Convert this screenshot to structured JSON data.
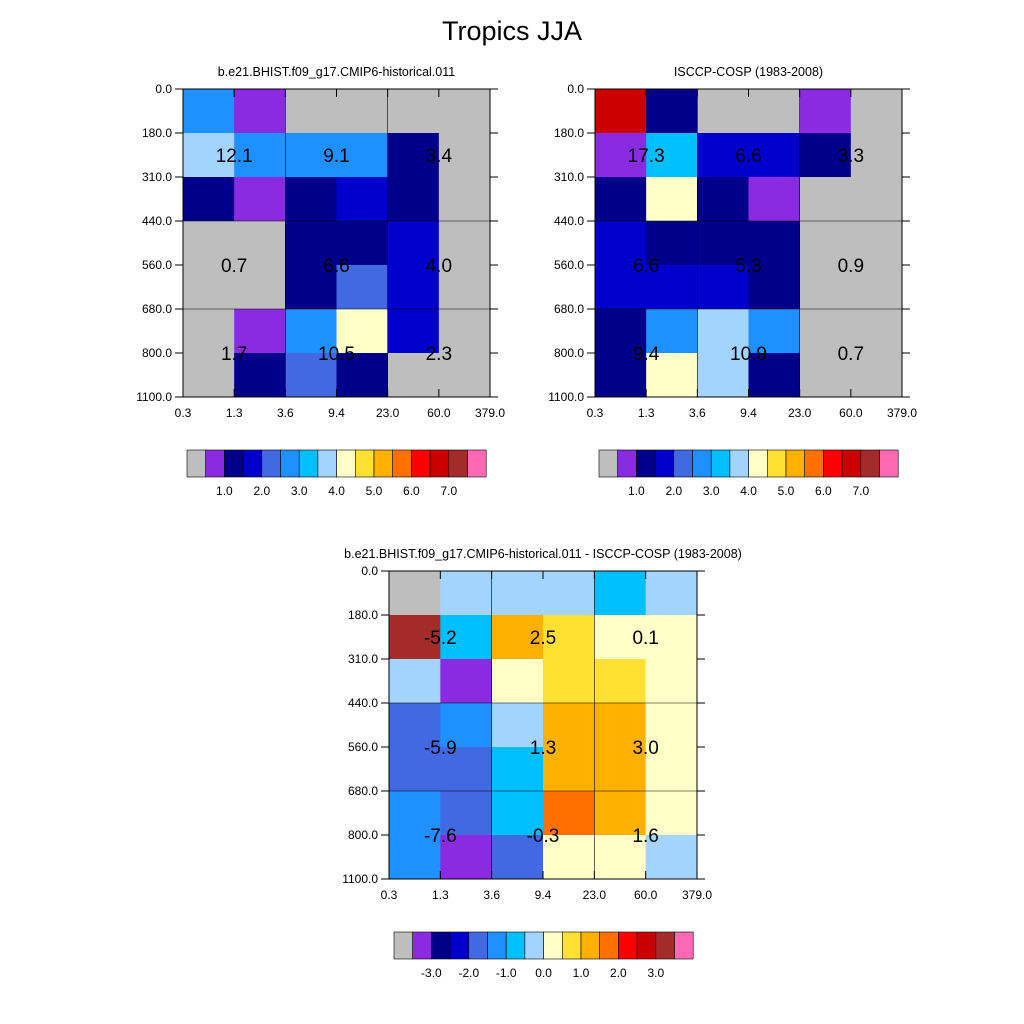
{
  "title": "Tropics JJA",
  "palette": {
    "grey": "#bebebe",
    "purple": "#8a2be2",
    "navy": "#00008b",
    "blue": "#0000cd",
    "royal": "#4169e1",
    "dodger": "#1e90ff",
    "deepsky": "#00bfff",
    "lightsky": "#a3d3ff",
    "lemon": "#ffffc8",
    "gold": "#ffe033",
    "orange": "#ffb000",
    "darkorange": "#ff7000",
    "red": "#ff0000",
    "crimson": "#cc0000",
    "brown": "#a52a2a",
    "pink": "#ff69b4"
  },
  "chart_data": [
    {
      "id": "model",
      "type": "heatmap",
      "title": "b.e21.BHIST.f09_g17.CMIP6-historical.011",
      "x_ticks": [
        "0.3",
        "1.3",
        "3.6",
        "9.4",
        "23.0",
        "60.0",
        "379.0"
      ],
      "y_ticks": [
        "0.0",
        "180.0",
        "310.0",
        "440.0",
        "560.0",
        "680.0",
        "800.0",
        "1100.0"
      ],
      "grid": [
        [
          "dodger",
          "purple",
          "grey",
          "grey",
          "grey",
          "grey"
        ],
        [
          "lightsky",
          "dodger",
          "dodger",
          "dodger",
          "navy",
          "grey"
        ],
        [
          "navy",
          "purple",
          "navy",
          "blue",
          "navy",
          "grey"
        ],
        [
          "grey",
          "grey",
          "navy",
          "navy",
          "blue",
          "grey"
        ],
        [
          "grey",
          "grey",
          "navy",
          "royal",
          "blue",
          "grey"
        ],
        [
          "grey",
          "purple",
          "dodger",
          "lemon",
          "blue",
          "grey"
        ],
        [
          "grey",
          "navy",
          "royal",
          "navy",
          "grey",
          "grey"
        ]
      ],
      "group_labels": [
        [
          "12.1",
          "9.1",
          "3.4"
        ],
        [
          "0.7",
          "6.6",
          "4.0"
        ],
        [
          "1.7",
          "10.5",
          "2.3"
        ]
      ],
      "colorbar": {
        "colors": [
          "grey",
          "purple",
          "navy",
          "blue",
          "royal",
          "dodger",
          "deepsky",
          "lightsky",
          "lemon",
          "gold",
          "orange",
          "darkorange",
          "red",
          "crimson",
          "brown",
          "pink"
        ],
        "labels": [
          "1.0",
          "2.0",
          "3.0",
          "4.0",
          "5.0",
          "6.0",
          "7.0"
        ],
        "label_start": 1
      }
    },
    {
      "id": "obs",
      "type": "heatmap",
      "title": "ISCCP-COSP (1983-2008)",
      "x_ticks": [
        "0.3",
        "1.3",
        "3.6",
        "9.4",
        "23.0",
        "60.0",
        "379.0"
      ],
      "y_ticks": [
        "0.0",
        "180.0",
        "310.0",
        "440.0",
        "560.0",
        "680.0",
        "800.0",
        "1100.0"
      ],
      "grid": [
        [
          "crimson",
          "navy",
          "grey",
          "grey",
          "purple",
          "grey"
        ],
        [
          "purple",
          "deepsky",
          "blue",
          "blue",
          "navy",
          "grey"
        ],
        [
          "navy",
          "lemon",
          "navy",
          "purple",
          "grey",
          "grey"
        ],
        [
          "blue",
          "navy",
          "navy",
          "navy",
          "grey",
          "grey"
        ],
        [
          "blue",
          "blue",
          "blue",
          "navy",
          "grey",
          "grey"
        ],
        [
          "navy",
          "dodger",
          "lightsky",
          "dodger",
          "grey",
          "grey"
        ],
        [
          "navy",
          "lemon",
          "lightsky",
          "navy",
          "grey",
          "grey"
        ]
      ],
      "group_labels": [
        [
          "17.3",
          "6.6",
          "3.3"
        ],
        [
          "6.6",
          "5.3",
          "0.9"
        ],
        [
          "9.4",
          "10.9",
          "0.7"
        ]
      ],
      "colorbar": {
        "colors": [
          "grey",
          "purple",
          "navy",
          "blue",
          "royal",
          "dodger",
          "deepsky",
          "lightsky",
          "lemon",
          "gold",
          "orange",
          "darkorange",
          "red",
          "crimson",
          "brown",
          "pink"
        ],
        "labels": [
          "1.0",
          "2.0",
          "3.0",
          "4.0",
          "5.0",
          "6.0",
          "7.0"
        ],
        "label_start": 1
      }
    },
    {
      "id": "diff",
      "type": "heatmap",
      "title": "b.e21.BHIST.f09_g17.CMIP6-historical.011 - ISCCP-COSP (1983-2008)",
      "x_ticks": [
        "0.3",
        "1.3",
        "3.6",
        "9.4",
        "23.0",
        "60.0",
        "379.0"
      ],
      "y_ticks": [
        "0.0",
        "180.0",
        "310.0",
        "440.0",
        "560.0",
        "680.0",
        "800.0",
        "1100.0"
      ],
      "grid": [
        [
          "grey",
          "lightsky",
          "lightsky",
          "lightsky",
          "deepsky",
          "lightsky"
        ],
        [
          "brown",
          "deepsky",
          "orange",
          "gold",
          "lemon",
          "lemon"
        ],
        [
          "lightsky",
          "purple",
          "lemon",
          "gold",
          "gold",
          "lemon"
        ],
        [
          "royal",
          "dodger",
          "lightsky",
          "orange",
          "orange",
          "lemon"
        ],
        [
          "royal",
          "royal",
          "deepsky",
          "orange",
          "orange",
          "lemon"
        ],
        [
          "dodger",
          "royal",
          "deepsky",
          "darkorange",
          "orange",
          "lemon"
        ],
        [
          "dodger",
          "purple",
          "royal",
          "lemon",
          "lemon",
          "lightsky"
        ]
      ],
      "group_labels": [
        [
          "-5.2",
          "2.5",
          "0.1"
        ],
        [
          "-5.9",
          "1.3",
          "3.0"
        ],
        [
          "-7.6",
          "-0.3",
          "1.6"
        ]
      ],
      "colorbar": {
        "colors": [
          "grey",
          "purple",
          "navy",
          "blue",
          "royal",
          "dodger",
          "deepsky",
          "lightsky",
          "lemon",
          "gold",
          "orange",
          "darkorange",
          "red",
          "crimson",
          "brown",
          "pink"
        ],
        "labels": [
          "-3.0",
          "-2.0",
          "-1.0",
          "0.0",
          "1.0",
          "2.0",
          "3.0"
        ],
        "label_start": 1
      }
    }
  ]
}
